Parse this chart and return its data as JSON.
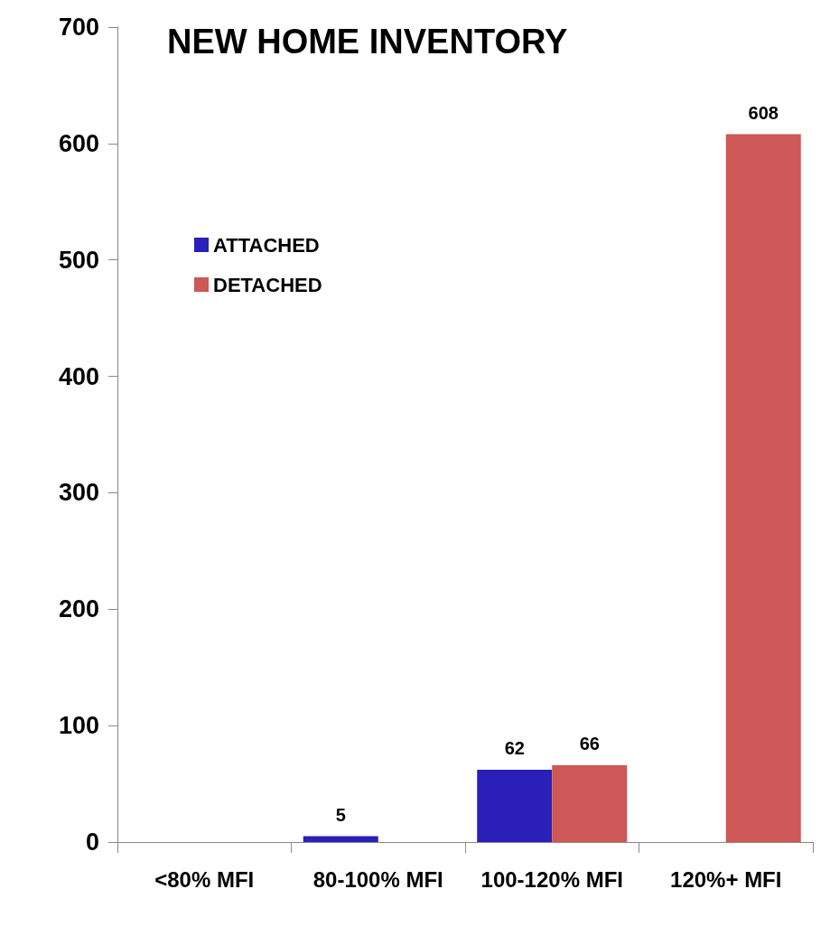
{
  "chart_data": {
    "type": "bar",
    "title": "NEW HOME INVENTORY",
    "categories": [
      "<80% MFI",
      "80-100% MFI",
      "100-120% MFI",
      "120%+ MFI"
    ],
    "series": [
      {
        "name": "ATTACHED",
        "color": "#2a1fb8",
        "values": [
          null,
          5,
          62,
          null
        ]
      },
      {
        "name": "DETACHED",
        "color": "#cd5857",
        "values": [
          null,
          null,
          66,
          608
        ]
      }
    ],
    "ylim": [
      0,
      700
    ],
    "yticks": [
      0,
      100,
      200,
      300,
      400,
      500,
      600,
      700
    ],
    "grid": false,
    "legend": "top left",
    "data_labels": true
  }
}
